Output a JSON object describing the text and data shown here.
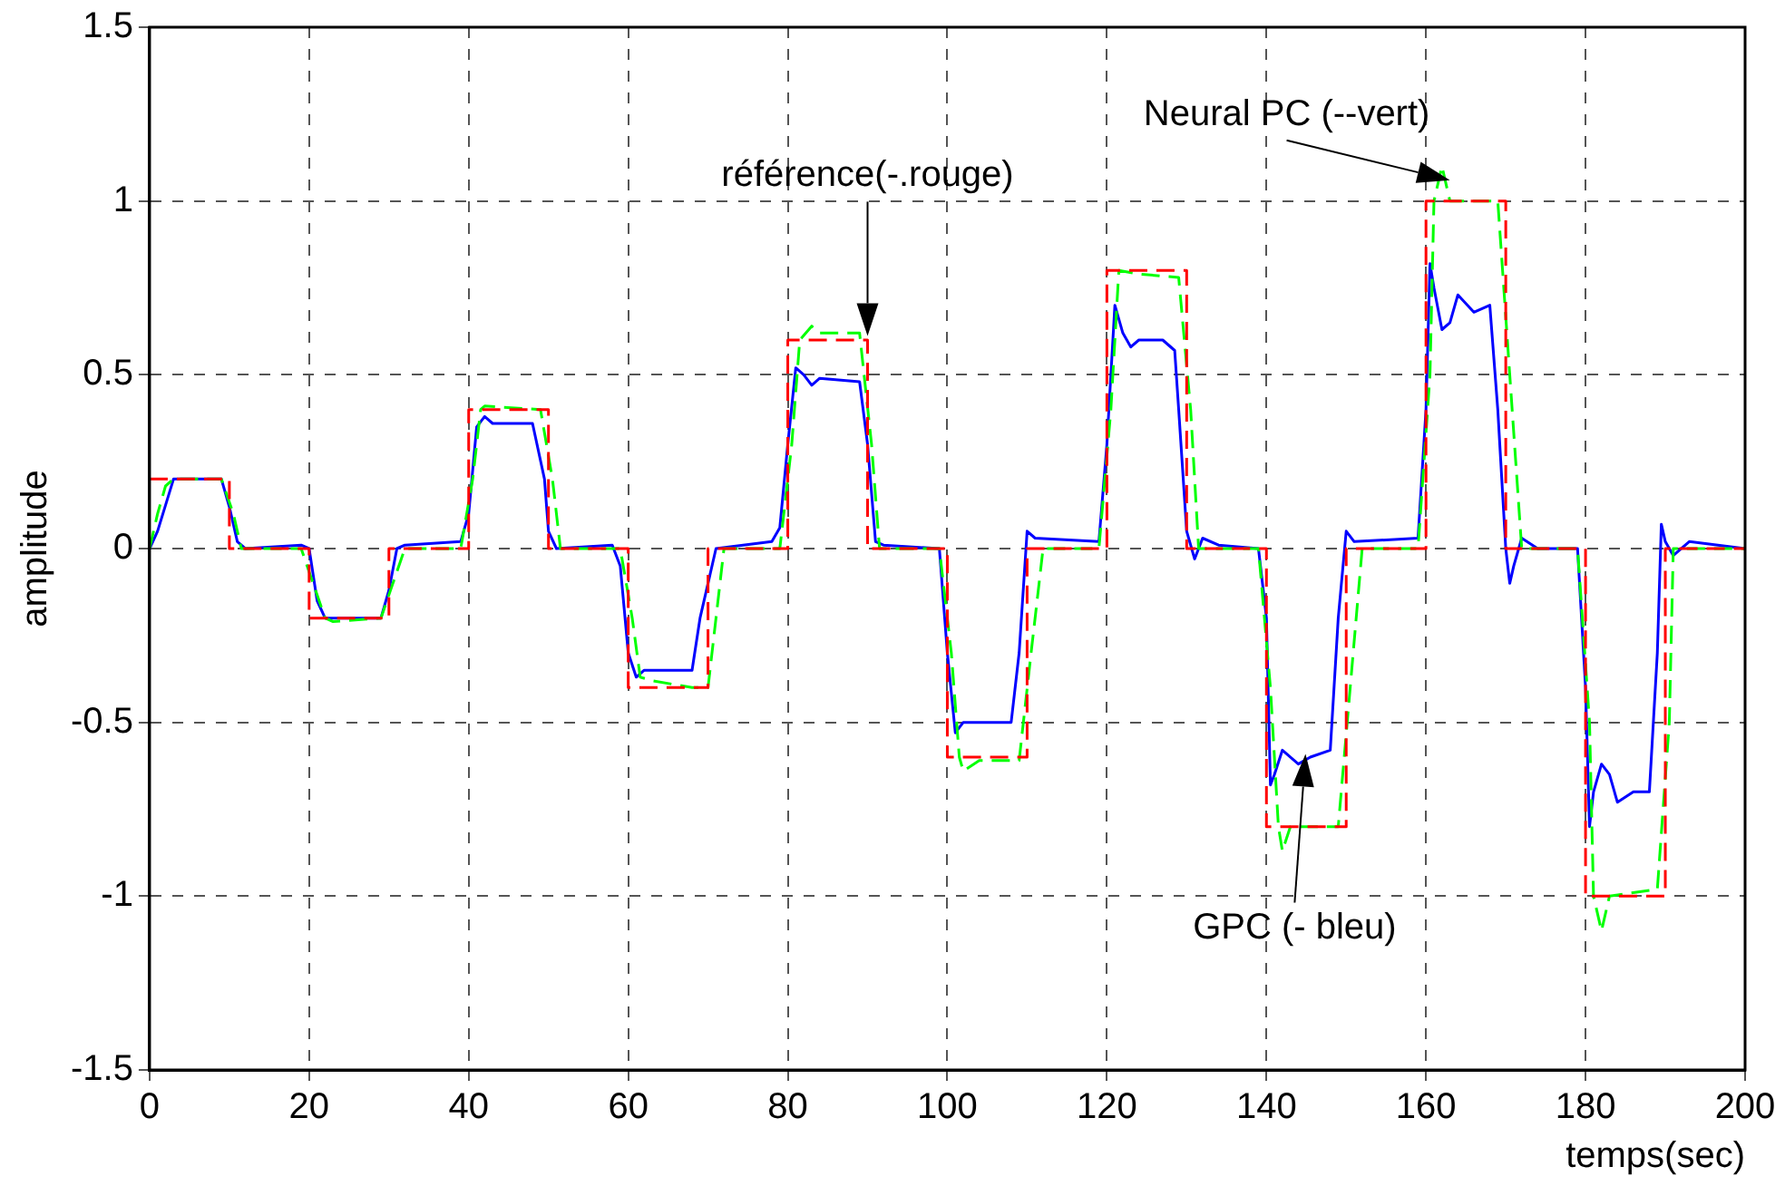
{
  "chart_data": {
    "type": "line",
    "xlabel": "temps(sec)",
    "ylabel": "amplitude",
    "xlim": [
      0,
      200
    ],
    "ylim": [
      -1.5,
      1.5
    ],
    "xticks": [
      0,
      20,
      40,
      60,
      80,
      100,
      120,
      140,
      160,
      180,
      200
    ],
    "yticks": [
      -1.5,
      -1,
      -0.5,
      0,
      0.5,
      1,
      1.5
    ],
    "grid": true,
    "legend": false,
    "marker": "none",
    "annotations": [
      "référence(-.rouge)",
      {
        "text": "Neural PC (--vert)",
        "x": 163,
        "y": 1.06
      },
      "GPC (- bleu)"
    ],
    "series": [
      {
        "color": "#ff0000",
        "line_style": "dashed",
        "x": [
          0,
          10,
          10,
          20,
          20,
          30,
          30,
          40,
          40,
          50,
          50,
          60,
          60,
          70,
          70,
          80,
          80,
          90,
          90,
          100,
          100,
          110,
          110,
          120,
          120,
          130,
          130,
          140,
          140,
          150,
          150,
          160,
          160,
          170,
          170,
          180,
          180,
          190,
          190,
          200
        ],
        "values": [
          0.2,
          0.2,
          0,
          0,
          -0.2,
          -0.2,
          0,
          0,
          0.4,
          0.4,
          0,
          0,
          -0.4,
          -0.4,
          0,
          0,
          0.6,
          0.6,
          0,
          0,
          -0.6,
          -0.6,
          0,
          0,
          0.8,
          0.8,
          0,
          0,
          -0.8,
          -0.8,
          0,
          0,
          1,
          1,
          0,
          0,
          -1,
          -1,
          0,
          0
        ]
      },
      {
        "color": "#00ff00",
        "line_style": "dashed",
        "x": [
          0,
          1,
          2,
          3,
          9,
          10.5,
          11.5,
          19,
          20.5,
          22,
          23,
          29,
          30.5,
          32,
          39,
          40.5,
          41.5,
          42,
          49,
          50.5,
          51.5,
          59,
          60.5,
          61.5,
          63,
          68,
          70,
          71,
          72,
          79,
          80.5,
          81.5,
          83,
          84,
          89,
          90.5,
          91.5,
          99,
          100.5,
          101.5,
          102,
          104,
          109,
          110.5,
          112,
          119,
          120.5,
          121.5,
          124,
          129,
          130.5,
          131.5,
          139,
          140.5,
          141.5,
          142,
          143,
          149,
          150.5,
          152,
          159,
          160.5,
          161,
          162,
          163,
          169,
          170.5,
          172,
          179,
          180.5,
          181,
          182,
          183,
          189,
          190.5,
          191,
          200
        ],
        "values": [
          0,
          0.1,
          0.18,
          0.2,
          0.2,
          0.1,
          0,
          0,
          -0.1,
          -0.2,
          -0.21,
          -0.2,
          -0.1,
          0,
          0,
          0.2,
          0.4,
          0.41,
          0.4,
          0.2,
          0,
          0,
          -0.2,
          -0.37,
          -0.38,
          -0.4,
          -0.4,
          -0.2,
          0,
          0,
          0.3,
          0.6,
          0.64,
          0.62,
          0.62,
          0.3,
          0,
          0,
          -0.3,
          -0.6,
          -0.64,
          -0.61,
          -0.61,
          -0.3,
          0,
          0,
          0.4,
          0.8,
          0.79,
          0.78,
          0.4,
          0,
          0,
          -0.4,
          -0.8,
          -0.87,
          -0.8,
          -0.8,
          -0.4,
          0,
          0,
          0.5,
          1,
          1.1,
          1,
          1,
          0.5,
          0,
          0,
          -0.5,
          -1,
          -1.1,
          -1,
          -0.98,
          -0.5,
          0,
          0
        ]
      },
      {
        "color": "#0000ff",
        "line_style": "solid",
        "x": [
          0,
          1,
          3,
          9,
          10,
          11,
          12,
          19,
          20,
          21,
          22,
          29,
          30,
          31,
          32,
          39,
          40,
          41,
          42,
          43,
          48,
          49.5,
          50,
          51,
          58,
          59,
          60,
          61,
          62,
          68,
          69,
          70,
          71,
          78,
          79,
          80,
          81,
          82,
          83,
          84,
          89,
          90,
          91,
          92,
          99,
          100,
          101,
          102,
          108,
          109,
          110,
          111,
          119,
          120,
          121,
          122,
          123,
          124,
          127,
          128.5,
          129,
          130,
          131,
          132,
          134,
          139,
          140,
          140.5,
          141,
          142,
          144,
          145.5,
          148,
          149,
          150,
          151,
          159,
          160,
          160.5,
          161,
          162,
          163,
          164,
          166,
          168,
          169,
          170,
          170.5,
          171,
          172,
          174,
          179,
          180,
          180.5,
          181,
          182,
          183,
          184,
          186,
          188,
          189,
          189.5,
          190,
          191,
          193,
          200
        ],
        "values": [
          0,
          0.05,
          0.2,
          0.2,
          0.12,
          0.02,
          0,
          0.01,
          0,
          -0.15,
          -0.2,
          -0.2,
          -0.12,
          0,
          0.01,
          0.02,
          0.1,
          0.35,
          0.38,
          0.36,
          0.36,
          0.2,
          0.05,
          0,
          0.01,
          -0.05,
          -0.3,
          -0.37,
          -0.35,
          -0.35,
          -0.2,
          -0.1,
          0,
          0.02,
          0.06,
          0.3,
          0.52,
          0.5,
          0.47,
          0.49,
          0.48,
          0.3,
          0.02,
          0.01,
          0,
          -0.3,
          -0.53,
          -0.5,
          -0.5,
          -0.3,
          0.05,
          0.03,
          0.02,
          0.3,
          0.7,
          0.62,
          0.58,
          0.6,
          0.6,
          0.57,
          0.4,
          0.05,
          -0.03,
          0.03,
          0.01,
          0,
          -0.2,
          -0.68,
          -0.65,
          -0.58,
          -0.62,
          -0.6,
          -0.58,
          -0.2,
          0.05,
          0.02,
          0.03,
          0.4,
          0.82,
          0.75,
          0.63,
          0.65,
          0.73,
          0.68,
          0.7,
          0.4,
          0,
          -0.1,
          -0.05,
          0.03,
          0,
          0,
          -0.4,
          -0.8,
          -0.7,
          -0.62,
          -0.65,
          -0.73,
          -0.7,
          -0.7,
          -0.3,
          0.07,
          0.02,
          -0.02,
          0.02,
          0
        ]
      }
    ]
  }
}
